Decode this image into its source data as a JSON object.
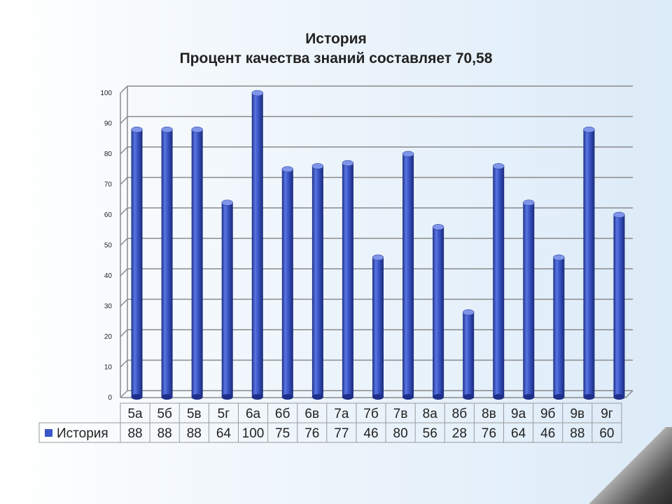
{
  "chart_data": {
    "type": "bar",
    "title": "История",
    "subtitle": "Процент качества знаний составляет 70,58",
    "categories": [
      "5а",
      "5б",
      "5в",
      "5г",
      "6а",
      "6б",
      "6в",
      "7а",
      "7б",
      "7в",
      "8а",
      "8б",
      "8в",
      "9а",
      "9б",
      "9в",
      "9г"
    ],
    "series": [
      {
        "name": "История",
        "values": [
          88,
          88,
          88,
          64,
          100,
          75,
          76,
          77,
          46,
          80,
          56,
          28,
          76,
          64,
          46,
          88,
          60
        ]
      }
    ],
    "ylim": [
      0,
      100
    ],
    "yticks": [
      0,
      10,
      20,
      30,
      40,
      50,
      60,
      70,
      80,
      90,
      100
    ],
    "grid": true,
    "data_table": true,
    "colors": {
      "bar": "#3a56c8",
      "bar_dark": "#1d2f8a",
      "bar_light": "#7e95ea"
    }
  }
}
